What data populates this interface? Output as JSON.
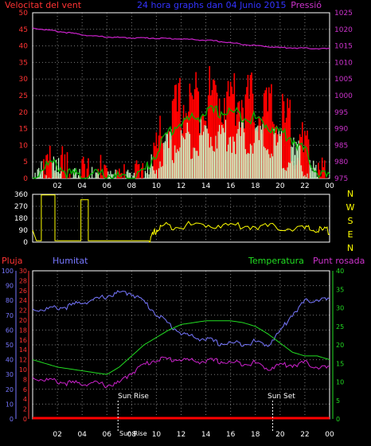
{
  "header": {
    "title": "24 hora graphs dan 04 Junio 2015",
    "left_label": "Velocitat del vent",
    "right_label": "Pressió"
  },
  "lower_labels": {
    "rain": "Pluja",
    "humidity": "Humitat",
    "temperature": "Temperatura",
    "dewpoint": "Punt rosada",
    "sunrise": "Sun Rise",
    "sunset": "Sun Set",
    "sunbottom": "Sun Rise"
  },
  "colors": {
    "background": "#000000",
    "grid": "#7a7a7a",
    "frame": "#ffffff",
    "wind_gust": "#ff0000",
    "wind_avg": "#00b000",
    "wind_speed": "#ccffcc",
    "pressure": "#cc22cc",
    "direction": "#ffff00",
    "humidity": "#7777ff",
    "temperature": "#22dd22",
    "dewpoint": "#cc22cc",
    "rain": "#ff0000",
    "title": "#3333ff",
    "left_axis": "#ff3333",
    "right_axis": "#cc33cc",
    "dir_axis": "#ffff00"
  },
  "chart_data": [
    {
      "type": "line",
      "name": "wind_pressure",
      "x": [
        0,
        1,
        2,
        3,
        4,
        5,
        6,
        7,
        8,
        9,
        10,
        11,
        12,
        13,
        14,
        15,
        16,
        17,
        18,
        19,
        20,
        21,
        22,
        23,
        24
      ],
      "x_tick_labels": [
        "02",
        "04",
        "06",
        "08",
        "10",
        "12",
        "14",
        "16",
        "18",
        "20",
        "22",
        "00"
      ],
      "y_left_ticks": [
        0,
        5,
        10,
        15,
        20,
        25,
        30,
        35,
        40,
        45,
        50
      ],
      "y_right_ticks": [
        975,
        980,
        985,
        990,
        995,
        1000,
        1005,
        1010,
        1015,
        1020,
        1025
      ],
      "ylim_left": [
        0,
        50
      ],
      "ylim_right": [
        975,
        1025
      ],
      "series": [
        {
          "values": [
            2,
            6,
            7,
            3,
            3,
            3,
            3,
            2,
            2,
            4,
            13,
            20,
            27,
            28,
            29,
            30,
            29,
            29,
            27,
            25,
            22,
            19,
            11,
            4,
            2
          ]
        },
        {
          "values": [
            1,
            5,
            5,
            2,
            2,
            2,
            2,
            1,
            1,
            3,
            9,
            15,
            18,
            19,
            21,
            21,
            21,
            20,
            19,
            17,
            15,
            13,
            9,
            3,
            1
          ]
        },
        {
          "values": [
            1,
            4,
            4,
            1,
            1,
            1,
            2,
            1,
            1,
            2,
            7,
            12,
            14,
            15,
            16,
            16,
            16,
            15,
            15,
            13,
            12,
            10,
            7,
            2,
            1
          ]
        },
        {
          "axis": "right",
          "values": [
            1020.5,
            1020.0,
            1019.5,
            1019.0,
            1018.5,
            1018.0,
            1017.8,
            1017.6,
            1017.5,
            1017.5,
            1017.4,
            1017.3,
            1017.2,
            1017.0,
            1016.8,
            1016.5,
            1016.0,
            1015.6,
            1015.2,
            1014.9,
            1014.6,
            1014.5,
            1014.4,
            1014.3,
            1014.2
          ]
        }
      ]
    },
    {
      "type": "line",
      "name": "wind_direction",
      "y_ticks": [
        0,
        90,
        180,
        270,
        360
      ],
      "ylim": [
        0,
        360
      ],
      "direction_labels": [
        "N",
        "W",
        "S",
        "E",
        "N"
      ],
      "series": [
        {
          "points": [
            [
              0,
              90
            ],
            [
              0.3,
              10
            ],
            [
              0.7,
              10
            ],
            [
              0.7,
              355
            ],
            [
              1.8,
              355
            ],
            [
              1.8,
              10
            ],
            [
              3.9,
              10
            ],
            [
              3.9,
              320
            ],
            [
              4.5,
              320
            ],
            [
              4.5,
              10
            ],
            [
              9.4,
              10
            ],
            [
              9.9,
              95
            ],
            [
              10.5,
              135
            ],
            [
              12,
              140
            ],
            [
              14,
              145
            ],
            [
              16,
              140
            ],
            [
              18,
              135
            ],
            [
              20,
              125
            ],
            [
              22,
              115
            ],
            [
              23,
              105
            ],
            [
              24,
              100
            ]
          ]
        }
      ]
    },
    {
      "type": "line",
      "name": "humidity_temperature",
      "y_left_ticks": [
        0,
        10,
        20,
        30,
        40,
        50,
        60,
        70,
        80,
        90,
        100
      ],
      "y_left2_ticks": [
        0,
        2,
        4,
        6,
        8,
        10,
        12,
        14,
        16,
        18,
        20,
        22,
        24,
        26,
        28,
        30
      ],
      "y_right_ticks": [
        0,
        5,
        10,
        15,
        20,
        25,
        30,
        35,
        40
      ],
      "ylim_humidity": [
        0,
        100
      ],
      "ylim_temp": [
        0,
        40
      ],
      "series": [
        {
          "values": [
            75,
            75,
            76,
            77,
            80,
            81,
            84,
            86,
            86,
            80,
            72,
            65,
            59,
            56,
            55,
            52,
            52,
            52,
            53,
            51,
            60,
            72,
            80,
            82,
            81
          ]
        },
        {
          "axis": "right",
          "values": [
            16,
            15,
            14,
            13.5,
            13,
            12.5,
            12,
            14,
            17,
            20,
            22,
            24,
            25.5,
            26,
            26.5,
            26.5,
            26.5,
            26,
            25,
            23,
            20.5,
            18,
            17,
            17,
            16
          ]
        },
        {
          "axis": "right",
          "values": [
            11.5,
            11,
            10.5,
            10,
            10,
            10,
            9.5,
            10,
            13,
            15,
            16.5,
            16.5,
            16.5,
            16,
            16,
            16,
            15.5,
            15.5,
            15.5,
            14,
            15,
            15,
            15.5,
            14.5,
            14
          ]
        },
        {
          "values": [
            0,
            0,
            0,
            0,
            0,
            0,
            0,
            0,
            0,
            0,
            0,
            0,
            0,
            0,
            0,
            0,
            0,
            0,
            0,
            0,
            0,
            0,
            0,
            0,
            0
          ]
        }
      ],
      "sunrise_hour": 6.9,
      "sunset_hour": 19.4
    }
  ]
}
